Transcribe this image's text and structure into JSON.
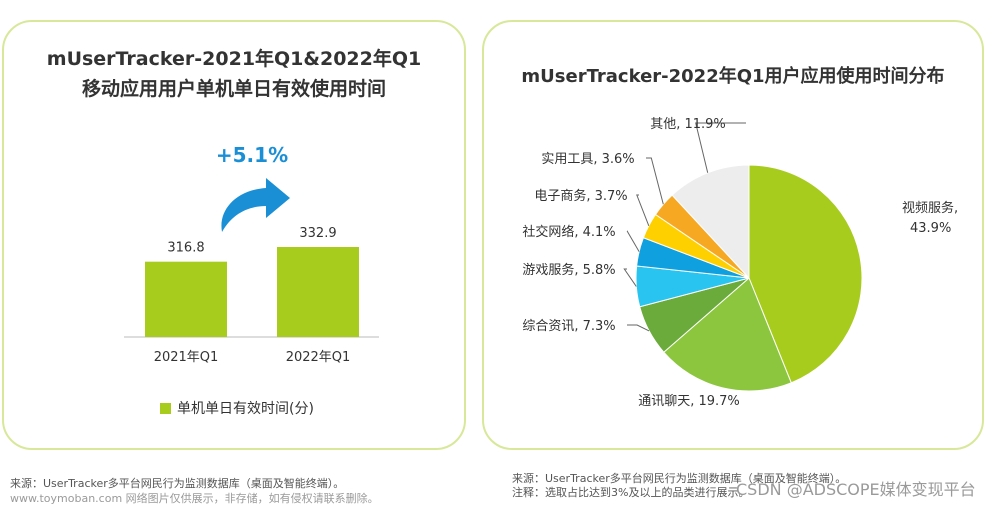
{
  "left_panel": {
    "title_line1": "mUserTracker-2021年Q1&2022年Q1",
    "title_line2": "移动应用用户单机单日有效使用时间",
    "growth_label": "+5.1%",
    "legend_label": "单机单日有效时间(分)",
    "source": "来源：UserTracker多平台网民行为监测数据库（桌面及智能终端）。"
  },
  "right_panel": {
    "title": "mUserTracker-2022年Q1用户应用使用时间分布",
    "source": "来源：UserTracker多平台网民行为监测数据库（桌面及智能终端）。",
    "note": "注释：选取占比达到3%及以上的品类进行展示。"
  },
  "watermarks": {
    "left": "www.toymoban.com 网络图片仅供展示，非存储，如有侵权请联系删除。",
    "right": "CSDN @ADSCOPE媒体变现平台"
  },
  "colors": {
    "panel_border": "#d7e89a",
    "bar": "#a8cc1e",
    "arrow": "#1a8fd6",
    "growth_text": "#1a8fd6",
    "pie": [
      "#a8cc1e",
      "#8cc63f",
      "#6aab3b",
      "#29c4ef",
      "#0fa0e0",
      "#ffd000",
      "#f7a823",
      "#ededed"
    ]
  },
  "chart_data": [
    {
      "type": "bar",
      "categories": [
        "2021年Q1",
        "2022年Q1"
      ],
      "values": [
        316.8,
        332.9
      ],
      "value_labels": [
        "316.8",
        "332.9"
      ],
      "series": [
        {
          "name": "单机单日有效时间(分)",
          "values": [
            316.8,
            332.9
          ]
        }
      ],
      "title": "mUserTracker-2021年Q1&2022年Q1 移动应用用户单机单日有效使用时间",
      "annotation": "+5.1%",
      "axis_min": 300,
      "legend": "bottom"
    },
    {
      "type": "pie",
      "title": "mUserTracker-2022年Q1用户应用使用时间分布",
      "slices": [
        {
          "label": "视频服务",
          "value": 43.9,
          "display": "43.9%"
        },
        {
          "label": "通讯聊天",
          "value": 19.7,
          "display": "19.7%"
        },
        {
          "label": "综合资讯",
          "value": 7.3,
          "display": "7.3%"
        },
        {
          "label": "游戏服务",
          "value": 5.8,
          "display": "5.8%"
        },
        {
          "label": "社交网络",
          "value": 4.1,
          "display": "4.1%"
        },
        {
          "label": "电子商务",
          "value": 3.7,
          "display": "3.7%"
        },
        {
          "label": "实用工具",
          "value": 3.6,
          "display": "3.6%"
        },
        {
          "label": "其他",
          "value": 11.9,
          "display": "11.9%"
        }
      ]
    }
  ]
}
